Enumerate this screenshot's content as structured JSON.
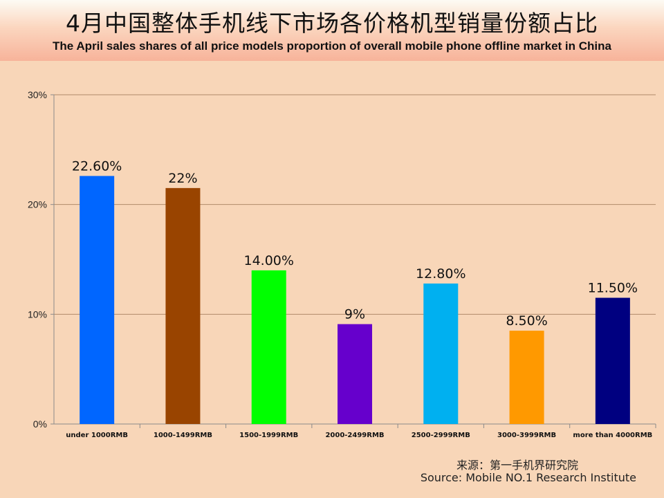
{
  "title_cn": "4月中国整体手机线下市场各价格机型销量份额占比",
  "title_en": "The April sales shares of all price models proportion of overall mobile phone offline market in China",
  "source_cn": "来源：第一手机界研究院",
  "source_en": "Source: Mobile NO.1 Research Institute",
  "chart_data": {
    "type": "bar",
    "title": "4月中国整体手机线下市场各价格机型销量份额占比",
    "subtitle": "The April sales shares of all price models proportion of overall mobile phone offline market in China",
    "categories": [
      "under 1000RMB",
      "1000-1499RMB",
      "1500-1999RMB",
      "2000-2499RMB",
      "2500-2999RMB",
      "3000-3999RMB",
      "more than 4000RMB"
    ],
    "values": [
      22.6,
      21.5,
      14.0,
      9.1,
      12.8,
      8.5,
      11.5
    ],
    "data_labels": [
      "22.60%",
      "22%",
      "14.00%",
      "9%",
      "12.80%",
      "8.50%",
      "11.50%"
    ],
    "colors": [
      "#0066ff",
      "#994400",
      "#00ff00",
      "#6600cc",
      "#00b0f0",
      "#ff9900",
      "#000080"
    ],
    "ylim": [
      0,
      30
    ],
    "yticks": [
      0,
      10,
      20,
      30
    ],
    "ytick_labels": [
      "0%",
      "10%",
      "20%",
      "30%"
    ],
    "grid": true,
    "legend": "none"
  }
}
